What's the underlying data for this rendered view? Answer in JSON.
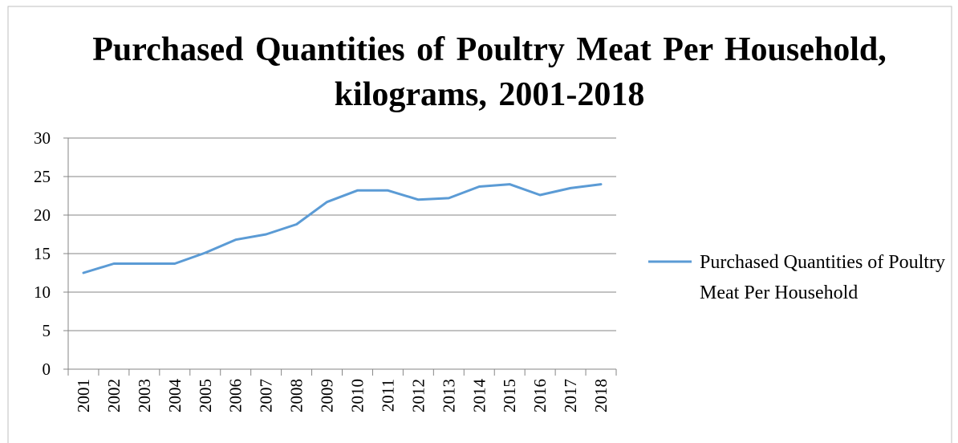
{
  "chart_data": {
    "type": "line",
    "title": "Purchased Quantities of Poultry Meat Per Household, kilograms, 2001-2018",
    "categories": [
      "2001",
      "2002",
      "2003",
      "2004",
      "2005",
      "2006",
      "2007",
      "2008",
      "2009",
      "2010",
      "2011",
      "2012",
      "2013",
      "2014",
      "2015",
      "2016",
      "2017",
      "2018"
    ],
    "series": [
      {
        "name": "Purchased Quantities of Poultry Meat Per Household",
        "color": "#5b9bd5",
        "values": [
          12.5,
          13.7,
          13.7,
          13.7,
          15.1,
          16.8,
          17.5,
          18.8,
          21.7,
          23.2,
          23.2,
          22.0,
          22.2,
          23.7,
          24.0,
          22.6,
          23.5,
          24.0
        ]
      }
    ],
    "ylim": [
      0,
      30
    ],
    "yticks": [
      0,
      5,
      10,
      15,
      20,
      25,
      30
    ],
    "grid": true,
    "legend": "right"
  }
}
